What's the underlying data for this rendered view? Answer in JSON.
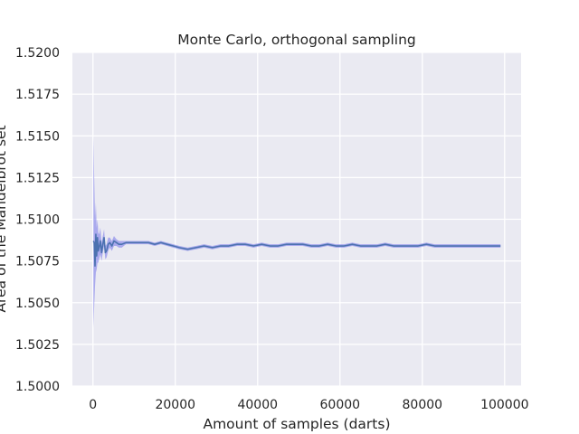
{
  "chart_data": {
    "type": "line",
    "title": "Monte Carlo, orthogonal sampling",
    "xlabel": "Amount of samples (darts)",
    "ylabel": "Area of the Mandelbrot set",
    "xlim": [
      -5000,
      104000
    ],
    "ylim": [
      1.5,
      1.52
    ],
    "grid": true,
    "x_ticks": [
      0,
      20000,
      40000,
      60000,
      80000,
      100000
    ],
    "x_tick_labels": [
      "0",
      "20000",
      "40000",
      "60000",
      "80000",
      "100000"
    ],
    "y_ticks": [
      1.5,
      1.5025,
      1.505,
      1.5075,
      1.51,
      1.5125,
      1.515,
      1.5175,
      1.52
    ],
    "y_tick_labels": [
      "1.5000",
      "1.5025",
      "1.5050",
      "1.5075",
      "1.5100",
      "1.5125",
      "1.5150",
      "1.5175",
      "1.5200"
    ],
    "colors": {
      "line": "#4c72b0",
      "band": "#5a5ae6",
      "plot_bg": "#eaeaf2",
      "grid": "#ffffff"
    },
    "series": [
      {
        "x": [
          100,
          300,
          500,
          700,
          900,
          1100,
          1300,
          1500,
          1800,
          2100,
          2400,
          2700,
          3000,
          3300,
          3700,
          4100,
          4600,
          5100,
          5700,
          6300,
          7000,
          8000,
          9000,
          10000,
          11000,
          12000,
          13500,
          15000,
          16500,
          18000,
          19500,
          21000,
          23000,
          25000,
          27000,
          29000,
          31000,
          33000,
          35000,
          37000,
          39000,
          41000,
          43000,
          45000,
          47000,
          49000,
          51000,
          53000,
          55000,
          57000,
          59000,
          61000,
          63000,
          65000,
          67000,
          69000,
          71000,
          73000,
          75000,
          77000,
          79000,
          81000,
          83000,
          85000,
          87000,
          89000,
          91000,
          93000,
          95000,
          97000,
          99000
        ],
        "y": [
          1.5087,
          1.5086,
          1.5072,
          1.5091,
          1.5078,
          1.5089,
          1.5081,
          1.5083,
          1.5087,
          1.508,
          1.5085,
          1.5089,
          1.508,
          1.5081,
          1.5085,
          1.5086,
          1.5084,
          1.5087,
          1.5086,
          1.5085,
          1.5085,
          1.5086,
          1.5086,
          1.5086,
          1.5086,
          1.5086,
          1.5086,
          1.5085,
          1.5086,
          1.5085,
          1.5084,
          1.5083,
          1.5082,
          1.5083,
          1.5084,
          1.5083,
          1.5084,
          1.5084,
          1.5085,
          1.5085,
          1.5084,
          1.5085,
          1.5084,
          1.5084,
          1.5085,
          1.5085,
          1.5085,
          1.5084,
          1.5084,
          1.5085,
          1.5084,
          1.5084,
          1.5085,
          1.5084,
          1.5084,
          1.5084,
          1.5085,
          1.5084,
          1.5084,
          1.5084,
          1.5084,
          1.5085,
          1.5084,
          1.5084,
          1.5084,
          1.5084,
          1.5084,
          1.5084,
          1.5084,
          1.5084,
          1.5084
        ],
        "ci_low": [
          1.5035,
          1.5048,
          1.506,
          1.5068,
          1.507,
          1.5074,
          1.5074,
          1.5076,
          1.5079,
          1.5075,
          1.508,
          1.5084,
          1.5076,
          1.5077,
          1.5081,
          1.5083,
          1.5081,
          1.5084,
          1.5084,
          1.5083,
          1.5083,
          1.5085,
          1.5085,
          1.5085,
          1.5085,
          1.5085,
          1.5085,
          1.5084,
          1.5085,
          1.5084,
          1.5083,
          1.5082,
          1.5081,
          1.5082,
          1.5083,
          1.5082,
          1.5083,
          1.5083,
          1.5084,
          1.5084,
          1.5083,
          1.5084,
          1.5083,
          1.5083,
          1.5084,
          1.5084,
          1.5084,
          1.5083,
          1.5083,
          1.5084,
          1.5083,
          1.5083,
          1.5084,
          1.5083,
          1.5083,
          1.5083,
          1.5084,
          1.5083,
          1.5083,
          1.5083,
          1.5083,
          1.5084,
          1.5083,
          1.5083,
          1.5083,
          1.5083,
          1.5083,
          1.5083,
          1.5083,
          1.5083,
          1.5083
        ],
        "ci_high": [
          1.515,
          1.5125,
          1.51,
          1.511,
          1.5095,
          1.51,
          1.5092,
          1.5091,
          1.5095,
          1.5086,
          1.509,
          1.5094,
          1.5084,
          1.5085,
          1.5089,
          1.5089,
          1.5087,
          1.509,
          1.5088,
          1.5087,
          1.5087,
          1.5087,
          1.5087,
          1.5087,
          1.5087,
          1.5087,
          1.5087,
          1.5086,
          1.5087,
          1.5086,
          1.5085,
          1.5084,
          1.5083,
          1.5084,
          1.5085,
          1.5084,
          1.5085,
          1.5085,
          1.5086,
          1.5086,
          1.5085,
          1.5086,
          1.5085,
          1.5085,
          1.5086,
          1.5086,
          1.5086,
          1.5085,
          1.5085,
          1.5086,
          1.5085,
          1.5085,
          1.5086,
          1.5085,
          1.5085,
          1.5085,
          1.5086,
          1.5085,
          1.5085,
          1.5085,
          1.5085,
          1.5086,
          1.5085,
          1.5085,
          1.5085,
          1.5085,
          1.5085,
          1.5085,
          1.5085,
          1.5085,
          1.5085
        ]
      }
    ]
  }
}
